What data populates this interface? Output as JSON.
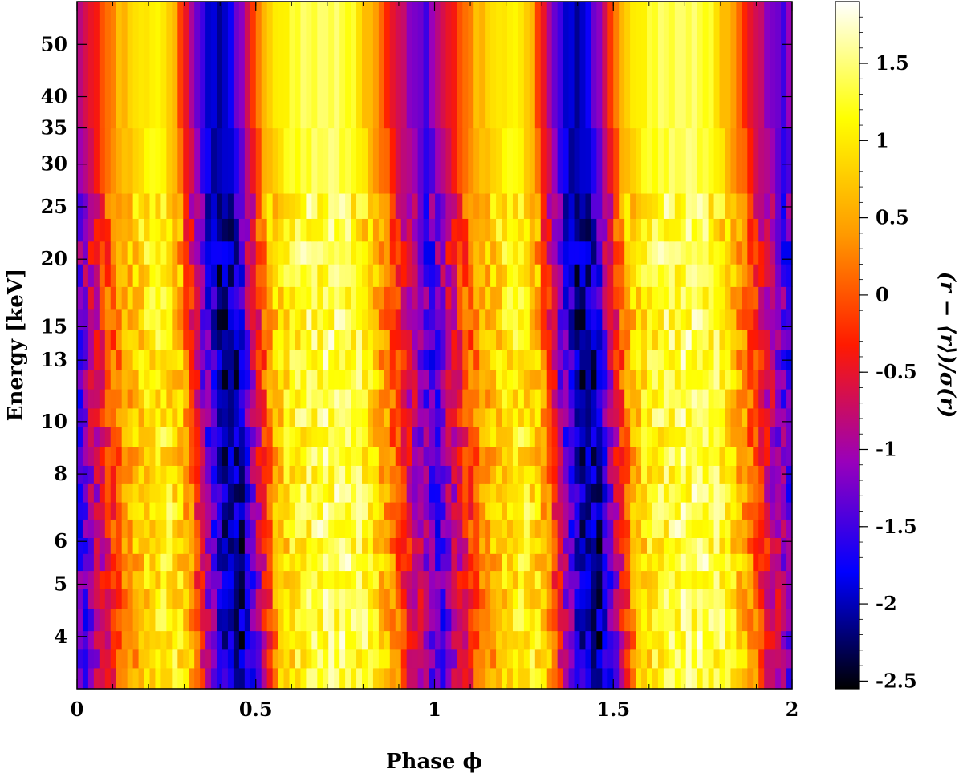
{
  "chart_data": {
    "type": "heatmap",
    "title": "",
    "xlabel": "Phase ϕ",
    "ylabel": "Energy [keV]",
    "colorbar_label": "(r − ⟨r⟩)/σ(r)",
    "x_scale": "linear",
    "y_scale": "log",
    "xlim": [
      0,
      2
    ],
    "ylim": [
      3.2,
      60
    ],
    "clim": [
      -2.55,
      1.9
    ],
    "colormap": "black-blue-purple-red-orange-yellow-white",
    "colormap_stops": [
      "#000000",
      "#0000ff",
      "#9900bb",
      "#ff1a00",
      "#ff9900",
      "#ffff00",
      "#ffffff"
    ],
    "x_ticks": [
      "0",
      "0.5",
      "1",
      "1.5",
      "2"
    ],
    "y_ticks": [
      "4",
      "5",
      "6",
      "8",
      "10",
      "13",
      "15",
      "20",
      "25",
      "30",
      "35",
      "40",
      "50"
    ],
    "colorbar_ticks": [
      "-2.5",
      "-2",
      "-1.5",
      "-1",
      "-0.5",
      "0",
      "0.5",
      "1",
      "1.5"
    ],
    "phase_bins": 64,
    "energy_band_edges": [
      3.2,
      3.5,
      3.8,
      4.1,
      4.5,
      4.9,
      5.3,
      5.7,
      6.1,
      6.6,
      7.1,
      7.7,
      8.3,
      9,
      9.8,
      10.6,
      11.5,
      12.5,
      13.6,
      14.8,
      16.2,
      17.8,
      19.6,
      21.6,
      23.8,
      26.5,
      35,
      60
    ],
    "phase_profile": [
      {
        "phase": 0.0,
        "value": -1.5
      },
      {
        "phase": 0.05,
        "value": -0.8
      },
      {
        "phase": 0.1,
        "value": 0.0
      },
      {
        "phase": 0.15,
        "value": 0.6
      },
      {
        "phase": 0.2,
        "value": 1.0
      },
      {
        "phase": 0.25,
        "value": 1.1
      },
      {
        "phase": 0.3,
        "value": 0.6
      },
      {
        "phase": 0.35,
        "value": -1.0
      },
      {
        "phase": 0.4,
        "value": -2.0
      },
      {
        "phase": 0.45,
        "value": -2.1
      },
      {
        "phase": 0.5,
        "value": -0.8
      },
      {
        "phase": 0.55,
        "value": 0.6
      },
      {
        "phase": 0.6,
        "value": 1.1
      },
      {
        "phase": 0.65,
        "value": 1.3
      },
      {
        "phase": 0.7,
        "value": 1.4
      },
      {
        "phase": 0.75,
        "value": 1.4
      },
      {
        "phase": 0.8,
        "value": 1.2
      },
      {
        "phase": 0.85,
        "value": 0.6
      },
      {
        "phase": 0.9,
        "value": -0.2
      },
      {
        "phase": 0.95,
        "value": -0.9
      },
      {
        "phase": 1.0,
        "value": -1.5
      }
    ],
    "grid": false,
    "legend": "colorbar-right"
  }
}
